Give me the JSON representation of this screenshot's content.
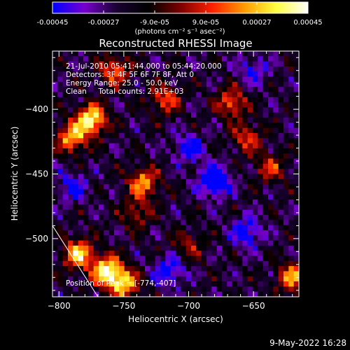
{
  "colorbar": {
    "tick_labels": [
      "-0.00045",
      "-0.00027",
      "-9.0e-05",
      "9.0e-05",
      "0.00027",
      "0.00045"
    ],
    "tick_values": [
      -0.00045,
      -0.00027,
      -9e-05,
      9e-05,
      0.00027,
      0.00045
    ],
    "range": [
      -0.00045,
      0.00045
    ],
    "units_label": "(photons cm⁻² s⁻¹ asec⁻²)",
    "colors": [
      "#0000ff",
      "#7700cc",
      "#1a0033",
      "#000000",
      "#7a0000",
      "#ff2000",
      "#ff9a00",
      "#ffff40",
      "#ffffff"
    ]
  },
  "chart_data": {
    "type": "heatmap",
    "title": "Reconstructed RHESSI Image",
    "xlabel": "Heliocentric X (arcsec)",
    "ylabel": "Heliocentric Y (arcsec)",
    "xlim": [
      -805,
      -615
    ],
    "ylim": [
      -545,
      -355
    ],
    "xticks": [
      -800,
      -750,
      -700,
      -650
    ],
    "yticks": [
      -400,
      -450,
      -500
    ],
    "xtick_labels": [
      "−800",
      "−750",
      "−700",
      "−650"
    ],
    "ytick_labels": [
      "−400",
      "−450",
      "−500"
    ],
    "annotations": [
      "21-Jul-2010 05:41:44.000 to 05:44:20.000",
      "Detectors: 3F 4F 5F 6F 7F 8F, Att 0",
      "Energy Range: 25.0 - 50.0 keV",
      "Clean     Total counts: 2.91E+03"
    ],
    "peak_label": "Position of Peak = [-774,-407]",
    "peak": [
      -774,
      -407
    ],
    "bright_regions": [
      {
        "x": -775,
        "y": -408,
        "level": 1.0
      },
      {
        "x": -757,
        "y": -370,
        "level": 0.6
      },
      {
        "x": -790,
        "y": -422,
        "level": 0.75
      },
      {
        "x": -763,
        "y": -525,
        "level": 1.0
      },
      {
        "x": -785,
        "y": -512,
        "level": 0.85
      },
      {
        "x": -750,
        "y": -535,
        "level": 0.8
      },
      {
        "x": -718,
        "y": -392,
        "level": 0.55
      },
      {
        "x": -735,
        "y": -457,
        "level": 0.7
      },
      {
        "x": -667,
        "y": -395,
        "level": 0.6
      },
      {
        "x": -655,
        "y": -422,
        "level": 0.5
      },
      {
        "x": -637,
        "y": -445,
        "level": 0.45
      },
      {
        "x": -620,
        "y": -530,
        "level": 0.7
      },
      {
        "x": -740,
        "y": -480,
        "level": 0.4
      },
      {
        "x": -700,
        "y": -505,
        "level": 0.35
      }
    ],
    "dim_regions": [
      {
        "x": -680,
        "y": -455,
        "level": -0.8
      },
      {
        "x": -655,
        "y": -495,
        "level": -0.5
      },
      {
        "x": -700,
        "y": -430,
        "level": -0.45
      },
      {
        "x": -715,
        "y": -525,
        "level": -0.5
      },
      {
        "x": -790,
        "y": -460,
        "level": -0.4
      },
      {
        "x": -650,
        "y": -370,
        "level": -0.35
      }
    ],
    "limb": [
      [
        -805,
        -490
      ],
      [
        -770,
        -545
      ]
    ]
  },
  "footer": {
    "date_label": "9-May-2022 16:28"
  }
}
